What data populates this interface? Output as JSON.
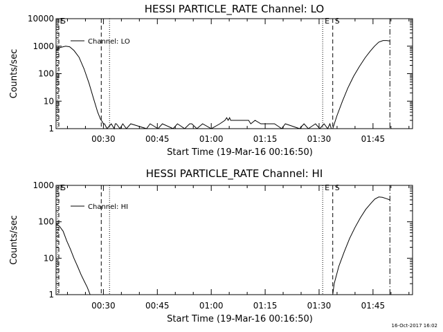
{
  "footer": {
    "timestamp": "16-Oct-2017 16:02"
  },
  "chart_data": [
    {
      "type": "line",
      "title": "HESSI PARTICLE_RATE Channel: LO",
      "xlabel": "Start Time (19-Mar-16 00:16:50)",
      "ylabel": "Counts/sec",
      "yscale": "log",
      "ylim": [
        1,
        10000
      ],
      "xlim_minutes": [
        16.83,
        116
      ],
      "xticks": [
        {
          "value": 30,
          "label": "00:30"
        },
        {
          "value": 45,
          "label": "00:45"
        },
        {
          "value": 60,
          "label": "01:00"
        },
        {
          "value": 75,
          "label": "01:15"
        },
        {
          "value": 90,
          "label": "01:30"
        },
        {
          "value": 105,
          "label": "01:45"
        }
      ],
      "yticks": [
        {
          "value": 1,
          "label": "1"
        },
        {
          "value": 10,
          "label": "10"
        },
        {
          "value": 100,
          "label": "100"
        },
        {
          "value": 1000,
          "label": "1000"
        },
        {
          "value": 10000,
          "label": "10000"
        }
      ],
      "legend": {
        "position": "top-left",
        "entries": [
          "Channel: LO"
        ]
      },
      "markers": [
        {
          "x": 17.3,
          "label": "E",
          "style": "dotted"
        },
        {
          "x": 17.6,
          "label": "S",
          "style": "dashed"
        },
        {
          "x": 29.4,
          "label": "",
          "style": "dashed"
        },
        {
          "x": 31.7,
          "label": "",
          "style": "dotted"
        },
        {
          "x": 91.0,
          "label": "E",
          "style": "dotted"
        },
        {
          "x": 93.8,
          "label": "S",
          "style": "dashed"
        },
        {
          "x": 109.7,
          "label": "",
          "style": "dashdot"
        }
      ],
      "series": [
        {
          "name": "Channel: LO",
          "x": [
            16.83,
            18.0,
            19.5,
            20.6,
            21.8,
            23.2,
            24.6,
            26.0,
            27.2,
            28.4,
            29.2,
            29.7,
            30.0,
            30.3,
            31.0,
            32.2,
            33.0,
            33.3,
            33.6,
            34.6,
            35.4,
            36.4,
            37.6,
            42.0,
            43.0,
            45.2,
            46.4,
            49.4,
            50.6,
            52.6,
            54.0,
            54.6,
            56.0,
            57.6,
            60.0,
            62.4,
            63.8,
            64.3,
            64.7,
            65.1,
            65.4,
            65.9,
            66.6,
            70.4,
            71.0,
            72.2,
            73.8,
            74.6,
            76.0,
            77.6,
            79.6,
            80.6,
            84.6,
            85.8,
            87.0,
            89.0,
            90.2,
            91.4,
            92.4,
            93.0,
            93.4,
            93.8,
            95.0,
            96.5,
            98.0,
            99.6,
            101.2,
            102.8,
            104.2,
            105.4,
            106.6,
            107.8,
            108.8,
            109.7
          ],
          "y": [
            700,
            900,
            1000,
            950,
            700,
            400,
            150,
            45,
            13,
            4,
            2.2,
            1.8,
            1.5,
            1.5,
            1,
            1.5,
            1,
            1.5,
            1.5,
            1,
            1.5,
            1,
            1.5,
            1,
            1.5,
            1,
            1.5,
            1,
            1.5,
            1,
            1.5,
            1.5,
            1,
            1.5,
            1,
            1.5,
            2,
            2.5,
            2,
            2.5,
            2,
            2,
            2,
            2,
            1.5,
            2,
            1.5,
            1.5,
            1.5,
            1.5,
            1,
            1.5,
            1,
            1.5,
            1,
            1.5,
            1,
            1.5,
            1,
            1.5,
            1,
            1,
            3,
            10,
            30,
            80,
            180,
            380,
            650,
            1000,
            1400,
            1600,
            1600,
            1550
          ]
        }
      ]
    },
    {
      "type": "line",
      "title": "HESSI PARTICLE_RATE Channel: HI",
      "xlabel": "Start Time (19-Mar-16 00:16:50)",
      "ylabel": "Counts/sec",
      "yscale": "log",
      "ylim": [
        1,
        1000
      ],
      "xlim_minutes": [
        16.83,
        116
      ],
      "xticks": [
        {
          "value": 30,
          "label": "00:30"
        },
        {
          "value": 45,
          "label": "00:45"
        },
        {
          "value": 60,
          "label": "01:00"
        },
        {
          "value": 75,
          "label": "01:15"
        },
        {
          "value": 90,
          "label": "01:30"
        },
        {
          "value": 105,
          "label": "01:45"
        }
      ],
      "yticks": [
        {
          "value": 1,
          "label": "1"
        },
        {
          "value": 10,
          "label": "10"
        },
        {
          "value": 100,
          "label": "100"
        },
        {
          "value": 1000,
          "label": "1000"
        }
      ],
      "legend": {
        "position": "top-left",
        "entries": [
          "Channel: HI"
        ]
      },
      "markers": [
        {
          "x": 17.3,
          "label": "E",
          "style": "dotted"
        },
        {
          "x": 17.6,
          "label": "S",
          "style": "dashed"
        },
        {
          "x": 29.4,
          "label": "",
          "style": "dashed"
        },
        {
          "x": 31.7,
          "label": "",
          "style": "dotted"
        },
        {
          "x": 91.0,
          "label": "E",
          "style": "dotted"
        },
        {
          "x": 93.8,
          "label": "S",
          "style": "dashed"
        },
        {
          "x": 109.7,
          "label": "",
          "style": "dashdot"
        }
      ],
      "series": [
        {
          "name": "Channel: HI",
          "x": [
            16.83,
            17.8,
            18.8,
            19.8,
            20.8,
            21.8,
            22.8,
            23.8,
            24.8,
            25.5,
            26.0,
            26.3
          ],
          "y": [
            90,
            75,
            55,
            30,
            18,
            10,
            6,
            3.5,
            2.2,
            1.6,
            1.2,
            1
          ],
          "x2": [
            93.8,
            94.2,
            95.5,
            97.0,
            98.5,
            100.0,
            101.5,
            103.0,
            104.5,
            105.5,
            106.6,
            107.6,
            108.8,
            109.7
          ],
          "y2": [
            1,
            2,
            6,
            15,
            35,
            70,
            130,
            220,
            330,
            420,
            480,
            470,
            430,
            400
          ]
        }
      ]
    }
  ]
}
